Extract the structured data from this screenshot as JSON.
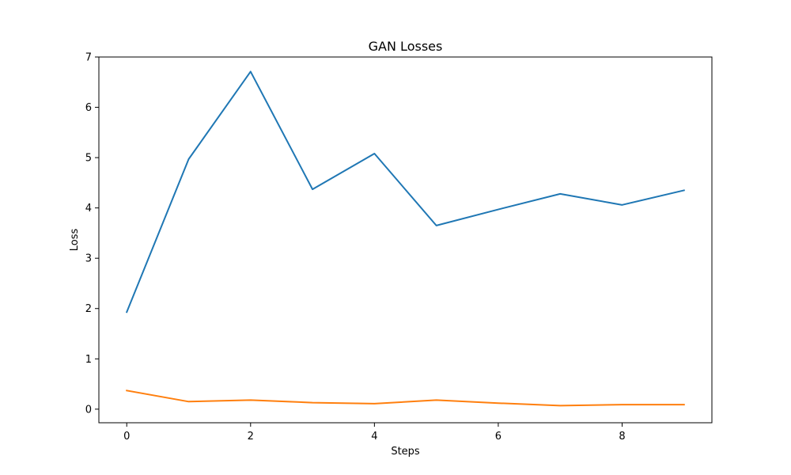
{
  "chart_data": {
    "type": "line",
    "title": "GAN Losses",
    "xlabel": "Steps",
    "ylabel": "Loss",
    "xlim": [
      -0.45,
      9.45
    ],
    "ylim": [
      -0.27,
      7.0
    ],
    "x_ticks": [
      0,
      2,
      4,
      6,
      8
    ],
    "y_ticks": [
      0,
      1,
      2,
      3,
      4,
      5,
      6,
      7
    ],
    "grid": false,
    "legend": "none",
    "x": [
      0,
      1,
      2,
      3,
      4,
      5,
      6,
      7,
      8,
      9
    ],
    "series": [
      {
        "color": "#1f77b4",
        "values": [
          1.93,
          4.97,
          6.71,
          4.37,
          5.08,
          3.65,
          3.97,
          4.28,
          4.06,
          4.35
        ]
      },
      {
        "color": "#ff7f0e",
        "values": [
          0.37,
          0.15,
          0.18,
          0.13,
          0.11,
          0.18,
          0.12,
          0.07,
          0.09,
          0.09
        ]
      }
    ]
  }
}
